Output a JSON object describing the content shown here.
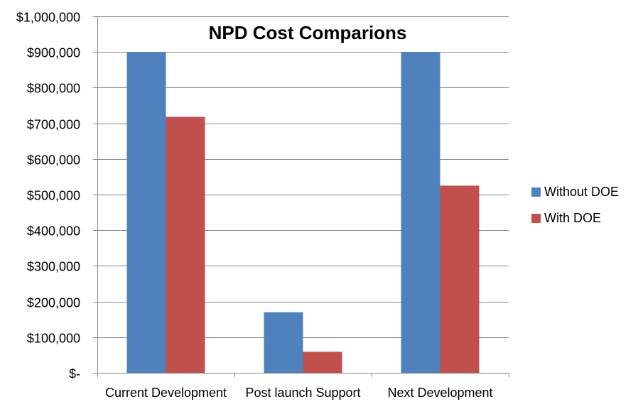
{
  "chart_data": {
    "type": "bar",
    "title": "NPD Cost Comparions",
    "categories": [
      "Current Development",
      "Post launch Support",
      "Next Development"
    ],
    "series": [
      {
        "name": "Without DOE",
        "values": [
          900000,
          170000,
          900000
        ],
        "color": "#4F81BD"
      },
      {
        "name": "With DOE",
        "values": [
          718000,
          59000,
          525000
        ],
        "color": "#C0504D"
      }
    ],
    "ylim": [
      0,
      1000000
    ],
    "yticks": [
      0,
      100000,
      200000,
      300000,
      400000,
      500000,
      600000,
      700000,
      800000,
      900000,
      1000000
    ],
    "ytick_labels": [
      "$-",
      "$100,000",
      "$200,000",
      "$300,000",
      "$400,000",
      "$500,000",
      "$600,000",
      "$700,000",
      "$800,000",
      "$900,000",
      "$1,000,000"
    ],
    "grid": true,
    "legend_position": "right"
  }
}
